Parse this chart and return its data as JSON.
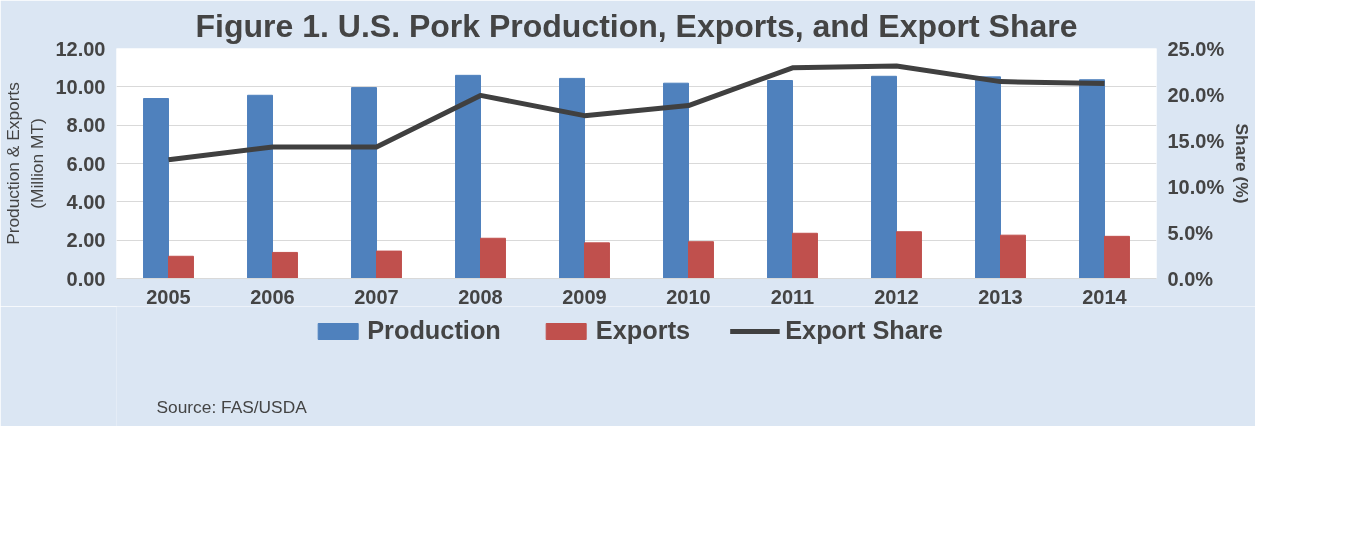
{
  "chart_data": {
    "type": "bar",
    "title": "Figure 1. U.S. Pork Production, Exports, and Export Share",
    "categories": [
      "2005",
      "2006",
      "2007",
      "2008",
      "2009",
      "2010",
      "2011",
      "2012",
      "2013",
      "2014"
    ],
    "ylabel": "Production & Exports\n(Million MT)",
    "y2label": "Share (%)",
    "ylim": [
      0,
      12
    ],
    "yticks": [
      {
        "value": 0,
        "label": "0.00"
      },
      {
        "value": 2,
        "label": "2.00"
      },
      {
        "value": 4,
        "label": "4.00"
      },
      {
        "value": 6,
        "label": "6.00"
      },
      {
        "value": 8,
        "label": "8.00"
      },
      {
        "value": 10,
        "label": "10.00"
      },
      {
        "value": 12,
        "label": "12.00"
      }
    ],
    "y2lim": [
      0,
      25
    ],
    "y2ticks": [
      {
        "value": 0,
        "label": "0.0%"
      },
      {
        "value": 5,
        "label": "5.0%"
      },
      {
        "value": 10,
        "label": "10.0%"
      },
      {
        "value": 15,
        "label": "15.0%"
      },
      {
        "value": 20,
        "label": "20.0%"
      },
      {
        "value": 25,
        "label": "25.0%"
      }
    ],
    "series": [
      {
        "name": "Production",
        "color": "#4f81bd",
        "values": [
          9.39,
          9.56,
          9.96,
          10.6,
          10.44,
          10.19,
          10.33,
          10.55,
          10.52,
          10.37
        ]
      },
      {
        "name": "Exports",
        "color": "#c0504d",
        "values": [
          1.16,
          1.36,
          1.43,
          2.1,
          1.86,
          1.92,
          2.36,
          2.44,
          2.26,
          2.2
        ]
      },
      {
        "name": "Export Share",
        "type": "line",
        "axis": "y2",
        "color": "#404040",
        "values": [
          12.9,
          14.3,
          14.3,
          19.9,
          17.7,
          18.8,
          22.9,
          23.1,
          21.4,
          21.2
        ]
      }
    ],
    "grid": "y",
    "legend": "bottom",
    "annotations": [
      "Source: FAS/USDA"
    ]
  }
}
